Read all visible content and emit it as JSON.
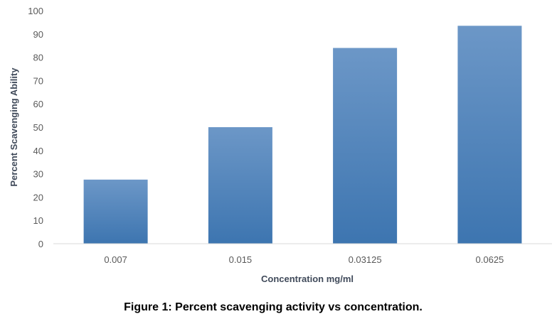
{
  "figure_caption": "Figure 1: Percent scavenging activity vs concentration.",
  "chart_data": {
    "type": "bar",
    "categories": [
      "0.007",
      "0.015",
      "0.03125",
      "0.0625"
    ],
    "values": [
      27.5,
      50,
      84,
      93.5
    ],
    "xlabel": "Concentration mg/ml",
    "ylabel": "Percent Scavenging Ability",
    "ylim": [
      0,
      100
    ],
    "yticks": [
      "0",
      "10",
      "20",
      "30",
      "40",
      "50",
      "60",
      "70",
      "80",
      "90",
      "100"
    ],
    "grid": false,
    "legend": "none",
    "colors": {
      "bar_top": "#6c97c7",
      "bar_bottom": "#3d75b0",
      "axis_line": "#d9d9d9"
    }
  }
}
